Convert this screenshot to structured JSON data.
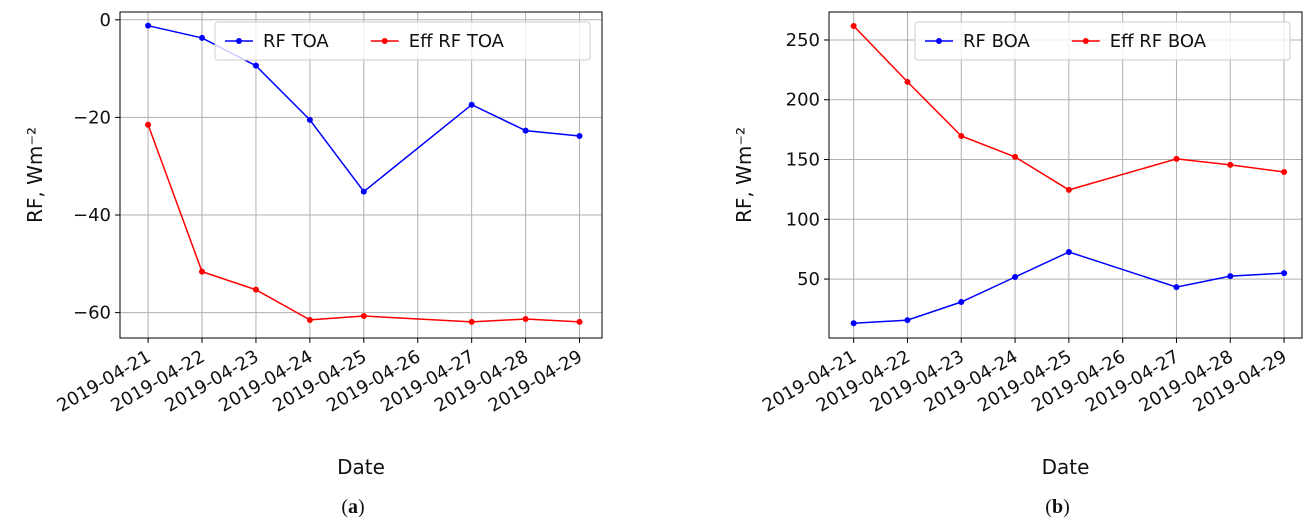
{
  "chart_data": [
    {
      "type": "line",
      "xlabel": "Date",
      "ylabel": "RF, Wm⁻²",
      "panel_label": [
        "(",
        "a",
        ")"
      ],
      "x": [
        "2019-04-21",
        "2019-04-22",
        "2019-04-23",
        "2019-04-24",
        "2019-04-25",
        "2019-04-27",
        "2019-04-28",
        "2019-04-29"
      ],
      "series": [
        {
          "name": "RF TOA",
          "color": "#0000ff",
          "values": [
            -1.2,
            -3.7,
            -9.4,
            -20.5,
            -35.2,
            -17.4,
            -22.7,
            -23.8
          ]
        },
        {
          "name": "Eff RF TOA",
          "color": "#ff0000",
          "values": [
            -21.5,
            -51.6,
            -55.3,
            -61.5,
            -60.7,
            -61.9,
            -61.3,
            -61.9
          ]
        }
      ],
      "xlim": [
        "2019-04-20T11:30Z",
        "2019-04-29T10:00Z"
      ],
      "xticks": [
        "2019-04-21",
        "2019-04-22",
        "2019-04-23",
        "2019-04-24",
        "2019-04-25",
        "2019-04-26",
        "2019-04-27",
        "2019-04-28",
        "2019-04-29"
      ],
      "ylim": [
        -65.2,
        1.6
      ],
      "yticks": [
        0,
        {
          "value": -20,
          "label": "−20"
        },
        {
          "value": -40,
          "label": "−40"
        },
        {
          "value": -60,
          "label": "−60"
        }
      ],
      "grid": true,
      "legend": "upper right"
    },
    {
      "type": "line",
      "xlabel": "Date",
      "ylabel": "RF, Wm⁻²",
      "panel_label": [
        "(",
        "b",
        ")"
      ],
      "x": [
        "2019-04-21",
        "2019-04-22",
        "2019-04-23",
        "2019-04-24",
        "2019-04-25",
        "2019-04-27",
        "2019-04-28",
        "2019-04-29"
      ],
      "series": [
        {
          "name": "RF BOA",
          "color": "#0000ff",
          "values": [
            13,
            15.7,
            30.8,
            51.7,
            72.6,
            43.3,
            52.5,
            55
          ]
        },
        {
          "name": "Eff RF BOA",
          "color": "#ff0000",
          "values": [
            261.7,
            214.9,
            169.7,
            152.2,
            124.6,
            150.5,
            145.5,
            139.6
          ]
        }
      ],
      "xlim": [
        "2019-04-20T13:00Z",
        "2019-04-29T08:00Z"
      ],
      "xticks": [
        "2019-04-21",
        "2019-04-22",
        "2019-04-23",
        "2019-04-24",
        "2019-04-25",
        "2019-04-26",
        "2019-04-27",
        "2019-04-28",
        "2019-04-29"
      ],
      "ylim": [
        0.7,
        273.4
      ],
      "yticks": [
        50,
        100,
        150,
        200,
        250
      ],
      "grid": true,
      "legend": "upper right"
    }
  ]
}
